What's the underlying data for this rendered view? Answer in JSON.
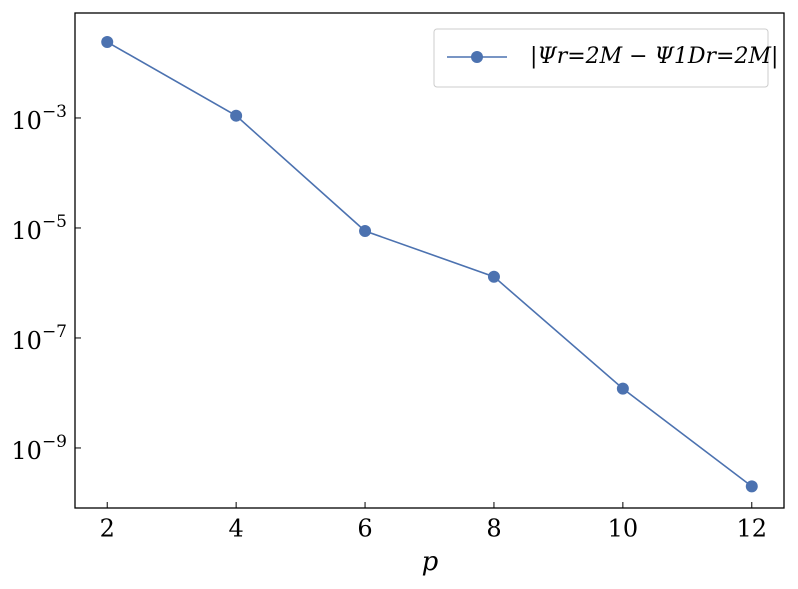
{
  "chart_data": {
    "type": "line",
    "x_label": "p",
    "x": [
      2,
      4,
      6,
      8,
      10,
      12
    ],
    "series": [
      {
        "name": "|Ψr=2M − Ψ1Dr=2M|",
        "color": "#4c72b0",
        "values": [
          0.024,
          0.0011,
          8.8e-06,
          1.3e-06,
          1.2e-08,
          2e-10
        ]
      }
    ],
    "xlim": [
      1.5,
      12.5
    ],
    "xticks": [
      2,
      4,
      6,
      8,
      10,
      12
    ],
    "ylim": [
      8.1e-11,
      0.081
    ],
    "y_scale": "log",
    "yticks": [
      {
        "value": 0.001,
        "label": "10−3"
      },
      {
        "value": 1e-05,
        "label": "10−5"
      },
      {
        "value": 1e-07,
        "label": "10−7"
      },
      {
        "value": 1e-09,
        "label": "10−9"
      }
    ],
    "legend": "upper right",
    "grid": false
  }
}
